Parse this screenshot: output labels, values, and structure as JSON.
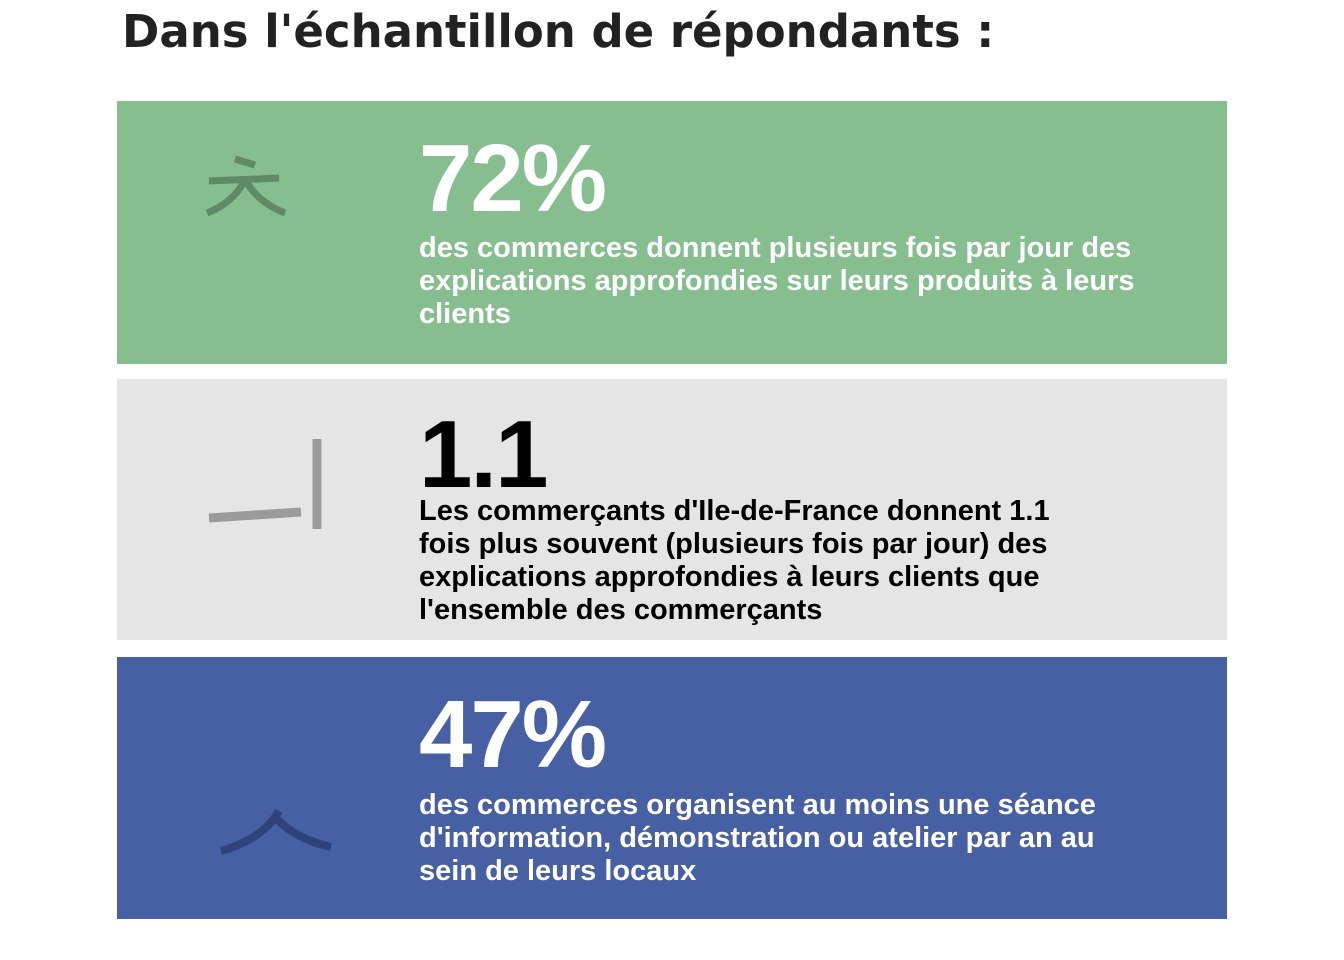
{
  "page": {
    "title": "Dans l'échantillon de répondants :"
  },
  "cards": [
    {
      "value": "72%",
      "description": "des commerces donnent plusieurs fois par jour des explications approfondies sur leurs produits à leurs clients",
      "icon": "korean-chieut-icon",
      "background": "#86be8f",
      "text_color": "#ffffff",
      "icon_color": "#5e8a66"
    },
    {
      "value": "1.1",
      "description": "Les commerçants d'Ile-de-France donnent 1.1 fois plus souvent (plusieurs fois par jour) des explications approfondies à leurs clients que l'ensemble des commerçants",
      "icon": "korean-ui-vowel-icon",
      "background": "#e5e5e5",
      "text_color": "#000000",
      "icon_color": "#9b9b9b"
    },
    {
      "value": "47%",
      "description": "des commerces organisent au moins une séance d'information, démonstration ou atelier par an au sein de leurs locaux",
      "icon": "korean-sieut-icon",
      "background": "#475fa3",
      "text_color": "#ffffff",
      "icon_color": "#2e427b"
    }
  ]
}
